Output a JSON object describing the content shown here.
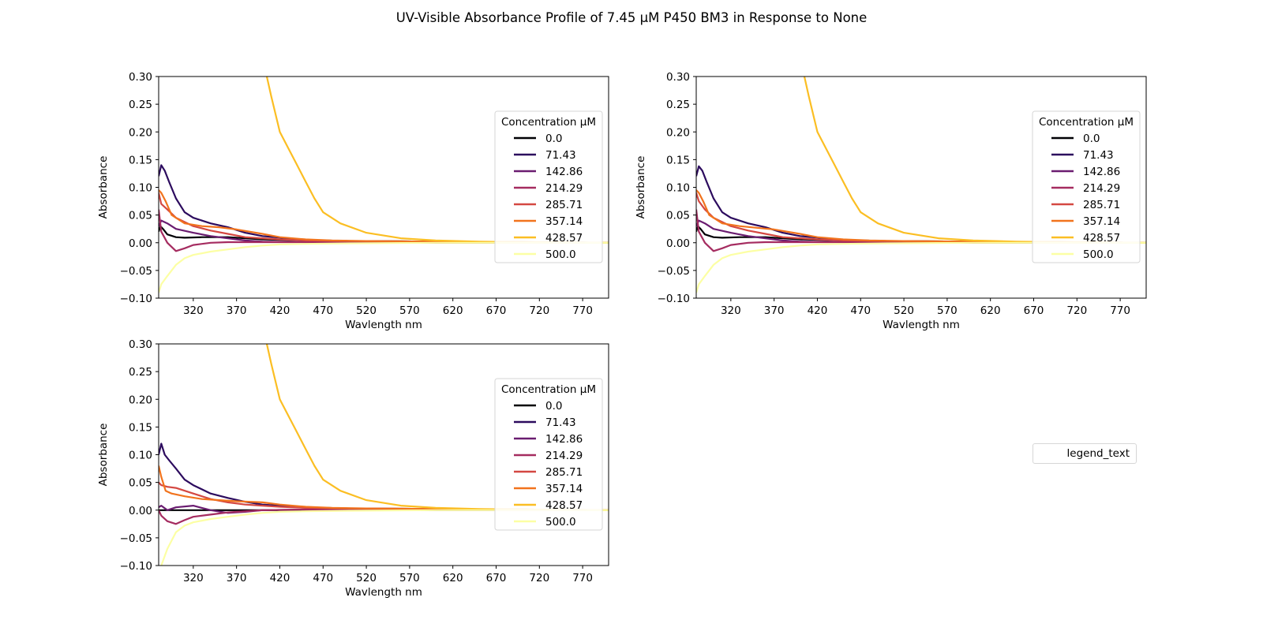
{
  "title": "UV-Visible Absorbance Profile of 7.45 µM P450 BM3 in Response to None",
  "extra_legend_text": "legend_text",
  "chart_data": [
    {
      "type": "line",
      "xlabel": "Wavlength nm",
      "ylabel": "Absorbance",
      "xlim": [
        280,
        800
      ],
      "ylim": [
        -0.1,
        0.3
      ],
      "xticks": [
        320,
        370,
        420,
        470,
        520,
        570,
        620,
        670,
        720,
        770
      ],
      "yticks": [
        -0.1,
        -0.05,
        0.0,
        0.05,
        0.1,
        0.15,
        0.2,
        0.25,
        0.3
      ],
      "grid": false,
      "legend_title": "Concentration µM",
      "legend_position": "center-right",
      "series": [
        {
          "name": "0.0",
          "color": "#000004",
          "x": [
            280,
            282,
            285,
            290,
            300,
            310,
            330,
            360,
            400,
            450,
            500,
            600,
            700,
            800
          ],
          "y": [
            0.02,
            0.03,
            0.025,
            0.015,
            0.01,
            0.009,
            0.01,
            0.01,
            0.006,
            0.004,
            0.003,
            0.002,
            0.001,
            0.0
          ]
        },
        {
          "name": "71.43",
          "color": "#2c0b5e",
          "x": [
            280,
            283,
            287,
            292,
            300,
            310,
            320,
            340,
            360,
            380,
            400,
            450,
            500,
            600,
            700,
            800
          ],
          "y": [
            0.12,
            0.14,
            0.13,
            0.11,
            0.08,
            0.055,
            0.045,
            0.035,
            0.028,
            0.018,
            0.012,
            0.005,
            0.003,
            0.002,
            0.001,
            0.0
          ]
        },
        {
          "name": "142.86",
          "color": "#6a1c70",
          "x": [
            280,
            283,
            290,
            300,
            320,
            340,
            360,
            380,
            400,
            450,
            500,
            600,
            700,
            800
          ],
          "y": [
            0.03,
            0.04,
            0.035,
            0.025,
            0.018,
            0.012,
            0.008,
            0.004,
            0.002,
            0.001,
            0.001,
            0.0,
            0.0,
            0.0
          ]
        },
        {
          "name": "214.29",
          "color": "#a52c60",
          "x": [
            280,
            283,
            290,
            300,
            310,
            320,
            340,
            360,
            380,
            400,
            450,
            500,
            600,
            700,
            800
          ],
          "y": [
            0.06,
            0.02,
            0.0,
            -0.015,
            -0.01,
            -0.004,
            0.0,
            0.001,
            0.001,
            0.001,
            0.001,
            0.0,
            0.0,
            0.0,
            0.0
          ]
        },
        {
          "name": "285.71",
          "color": "#d44842",
          "x": [
            280,
            283,
            290,
            300,
            320,
            340,
            360,
            380,
            400,
            420,
            450,
            500,
            600,
            700,
            800
          ],
          "y": [
            0.09,
            0.07,
            0.06,
            0.045,
            0.03,
            0.022,
            0.016,
            0.01,
            0.008,
            0.006,
            0.004,
            0.003,
            0.002,
            0.001,
            0.0
          ]
        },
        {
          "name": "357.14",
          "color": "#f1731d",
          "x": [
            280,
            283,
            288,
            295,
            310,
            330,
            350,
            370,
            400,
            420,
            450,
            480,
            520,
            600,
            700,
            800
          ],
          "y": [
            0.095,
            0.09,
            0.075,
            0.05,
            0.035,
            0.03,
            0.028,
            0.024,
            0.016,
            0.01,
            0.006,
            0.004,
            0.003,
            0.002,
            0.001,
            0.0
          ]
        },
        {
          "name": "428.57",
          "color": "#fbbe23",
          "x": [
            405,
            410,
            420,
            430,
            440,
            450,
            460,
            470,
            490,
            520,
            560,
            600,
            650,
            700,
            800
          ],
          "y": [
            0.3,
            0.265,
            0.2,
            0.17,
            0.14,
            0.11,
            0.08,
            0.055,
            0.035,
            0.018,
            0.008,
            0.004,
            0.002,
            0.001,
            0.0
          ]
        },
        {
          "name": "500.0",
          "color": "#fcffa4",
          "x": [
            280,
            283,
            290,
            300,
            310,
            320,
            340,
            360,
            380,
            400,
            420,
            450,
            500,
            600,
            700,
            800
          ],
          "y": [
            -0.09,
            -0.075,
            -0.06,
            -0.04,
            -0.028,
            -0.022,
            -0.016,
            -0.012,
            -0.008,
            -0.005,
            -0.003,
            -0.002,
            -0.001,
            0.0,
            0.0,
            0.0
          ]
        }
      ]
    },
    {
      "type": "line",
      "xlabel": "Wavlength nm",
      "ylabel": "Absorbance",
      "xlim": [
        280,
        800
      ],
      "ylim": [
        -0.1,
        0.3
      ],
      "xticks": [
        320,
        370,
        420,
        470,
        520,
        570,
        620,
        670,
        720,
        770
      ],
      "yticks": [
        -0.1,
        -0.05,
        0.0,
        0.05,
        0.1,
        0.15,
        0.2,
        0.25,
        0.3
      ],
      "grid": false,
      "legend_title": "Concentration µM",
      "legend_position": "center-right",
      "series": [
        {
          "name": "0.0",
          "color": "#000004",
          "x": [
            280,
            282,
            285,
            290,
            300,
            310,
            330,
            360,
            400,
            450,
            500,
            600,
            700,
            800
          ],
          "y": [
            0.02,
            0.03,
            0.025,
            0.015,
            0.01,
            0.009,
            0.01,
            0.01,
            0.006,
            0.004,
            0.003,
            0.002,
            0.001,
            0.0
          ]
        },
        {
          "name": "71.43",
          "color": "#2c0b5e",
          "x": [
            280,
            283,
            287,
            292,
            300,
            310,
            320,
            340,
            360,
            380,
            400,
            450,
            500,
            600,
            700,
            800
          ],
          "y": [
            0.12,
            0.138,
            0.13,
            0.11,
            0.08,
            0.055,
            0.045,
            0.035,
            0.028,
            0.018,
            0.012,
            0.005,
            0.003,
            0.002,
            0.001,
            0.0
          ]
        },
        {
          "name": "142.86",
          "color": "#6a1c70",
          "x": [
            280,
            283,
            290,
            300,
            320,
            340,
            360,
            380,
            400,
            450,
            500,
            600,
            700,
            800
          ],
          "y": [
            0.03,
            0.04,
            0.035,
            0.025,
            0.018,
            0.012,
            0.008,
            0.004,
            0.002,
            0.001,
            0.001,
            0.0,
            0.0,
            0.0
          ]
        },
        {
          "name": "214.29",
          "color": "#a52c60",
          "x": [
            280,
            283,
            290,
            300,
            310,
            320,
            340,
            360,
            380,
            400,
            450,
            500,
            600,
            700,
            800
          ],
          "y": [
            0.06,
            0.02,
            0.0,
            -0.015,
            -0.01,
            -0.004,
            0.0,
            0.001,
            0.001,
            0.001,
            0.001,
            0.0,
            0.0,
            0.0,
            0.0
          ]
        },
        {
          "name": "285.71",
          "color": "#d44842",
          "x": [
            280,
            283,
            290,
            300,
            320,
            340,
            360,
            380,
            400,
            420,
            450,
            500,
            600,
            700,
            800
          ],
          "y": [
            0.09,
            0.075,
            0.06,
            0.045,
            0.03,
            0.022,
            0.016,
            0.01,
            0.008,
            0.006,
            0.004,
            0.003,
            0.002,
            0.001,
            0.0
          ]
        },
        {
          "name": "357.14",
          "color": "#f1731d",
          "x": [
            280,
            283,
            288,
            295,
            310,
            330,
            350,
            370,
            400,
            420,
            450,
            480,
            520,
            600,
            700,
            800
          ],
          "y": [
            0.095,
            0.09,
            0.075,
            0.05,
            0.035,
            0.03,
            0.027,
            0.024,
            0.016,
            0.01,
            0.006,
            0.004,
            0.003,
            0.002,
            0.001,
            0.0
          ]
        },
        {
          "name": "428.57",
          "color": "#fbbe23",
          "x": [
            405,
            410,
            420,
            430,
            440,
            450,
            460,
            470,
            490,
            520,
            560,
            600,
            650,
            700,
            800
          ],
          "y": [
            0.3,
            0.265,
            0.2,
            0.17,
            0.14,
            0.11,
            0.08,
            0.055,
            0.035,
            0.018,
            0.008,
            0.004,
            0.002,
            0.001,
            0.0
          ]
        },
        {
          "name": "500.0",
          "color": "#fcffa4",
          "x": [
            280,
            283,
            290,
            300,
            310,
            320,
            340,
            360,
            380,
            400,
            420,
            450,
            500,
            600,
            700,
            800
          ],
          "y": [
            -0.09,
            -0.075,
            -0.06,
            -0.04,
            -0.028,
            -0.022,
            -0.016,
            -0.012,
            -0.008,
            -0.005,
            -0.003,
            -0.002,
            -0.001,
            0.0,
            0.0,
            0.0
          ]
        }
      ]
    },
    {
      "type": "line",
      "xlabel": "Wavlength nm",
      "ylabel": "Absorbance",
      "xlim": [
        280,
        800
      ],
      "ylim": [
        -0.1,
        0.3
      ],
      "xticks": [
        320,
        370,
        420,
        470,
        520,
        570,
        620,
        670,
        720,
        770
      ],
      "yticks": [
        -0.1,
        -0.05,
        0.0,
        0.05,
        0.1,
        0.15,
        0.2,
        0.25,
        0.3
      ],
      "grid": false,
      "legend_title": "Concentration µM",
      "legend_position": "center-right",
      "series": [
        {
          "name": "0.0",
          "color": "#000004",
          "x": [
            280,
            300,
            400,
            500,
            600,
            700,
            800
          ],
          "y": [
            0.0,
            0.0,
            0.0,
            0.0,
            0.0,
            0.0,
            0.0
          ]
        },
        {
          "name": "71.43",
          "color": "#2c0b5e",
          "x": [
            280,
            283,
            287,
            292,
            300,
            310,
            320,
            340,
            360,
            380,
            400,
            450,
            500,
            600,
            700,
            800
          ],
          "y": [
            0.1,
            0.12,
            0.1,
            0.09,
            0.075,
            0.055,
            0.045,
            0.03,
            0.022,
            0.015,
            0.01,
            0.005,
            0.003,
            0.002,
            0.001,
            0.0
          ]
        },
        {
          "name": "142.86",
          "color": "#6a1c70",
          "x": [
            280,
            283,
            290,
            300,
            320,
            340,
            360,
            380,
            400,
            450,
            500,
            600,
            700,
            800
          ],
          "y": [
            0.005,
            0.008,
            0.0,
            0.005,
            0.008,
            0.0,
            -0.005,
            -0.003,
            0.0,
            0.001,
            0.001,
            0.0,
            0.0,
            0.0
          ]
        },
        {
          "name": "214.29",
          "color": "#a52c60",
          "x": [
            280,
            283,
            290,
            300,
            310,
            320,
            340,
            360,
            380,
            400,
            450,
            500,
            600,
            700,
            800
          ],
          "y": [
            0.0,
            -0.01,
            -0.02,
            -0.025,
            -0.018,
            -0.012,
            -0.008,
            -0.004,
            -0.002,
            0.0,
            0.001,
            0.0,
            0.0,
            0.0,
            0.0
          ]
        },
        {
          "name": "285.71",
          "color": "#d44842",
          "x": [
            280,
            283,
            290,
            300,
            320,
            340,
            360,
            380,
            400,
            420,
            450,
            500,
            600,
            700,
            800
          ],
          "y": [
            0.05,
            0.045,
            0.042,
            0.04,
            0.03,
            0.02,
            0.014,
            0.01,
            0.008,
            0.006,
            0.004,
            0.003,
            0.002,
            0.001,
            0.0
          ]
        },
        {
          "name": "357.14",
          "color": "#f1731d",
          "x": [
            280,
            283,
            288,
            295,
            310,
            330,
            350,
            370,
            400,
            420,
            450,
            480,
            520,
            600,
            700,
            800
          ],
          "y": [
            0.08,
            0.06,
            0.035,
            0.03,
            0.025,
            0.02,
            0.018,
            0.016,
            0.014,
            0.01,
            0.006,
            0.004,
            0.003,
            0.002,
            0.001,
            0.0
          ]
        },
        {
          "name": "428.57",
          "color": "#fbbe23",
          "x": [
            405,
            410,
            420,
            430,
            440,
            450,
            460,
            470,
            490,
            520,
            560,
            600,
            650,
            700,
            800
          ],
          "y": [
            0.3,
            0.265,
            0.2,
            0.17,
            0.14,
            0.11,
            0.08,
            0.055,
            0.035,
            0.018,
            0.008,
            0.004,
            0.002,
            0.001,
            0.0
          ]
        },
        {
          "name": "500.0",
          "color": "#fcffa4",
          "x": [
            280,
            283,
            290,
            300,
            310,
            320,
            340,
            360,
            380,
            400,
            420,
            450,
            500,
            600,
            700,
            800
          ],
          "y": [
            -0.12,
            -0.1,
            -0.07,
            -0.04,
            -0.028,
            -0.022,
            -0.016,
            -0.012,
            -0.008,
            -0.005,
            -0.003,
            -0.002,
            -0.001,
            0.0,
            0.0,
            0.0
          ]
        }
      ]
    }
  ]
}
